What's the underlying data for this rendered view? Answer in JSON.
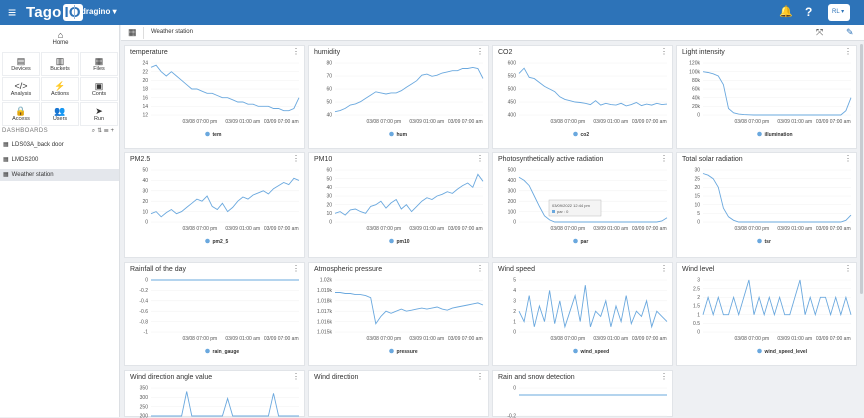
{
  "topbar": {
    "logo_text": "Tago",
    "logo_box": "IO",
    "account": "dragino",
    "avatar_initials": "RL"
  },
  "sidebar": {
    "home": "Home",
    "tiles": [
      {
        "label": "Devices",
        "icon": "devices-icon",
        "glyph": "▤"
      },
      {
        "label": "Buckets",
        "icon": "buckets-icon",
        "glyph": "▥"
      },
      {
        "label": "Files",
        "icon": "files-icon",
        "glyph": "▦"
      },
      {
        "label": "Analysis",
        "icon": "analysis-icon",
        "glyph": "</>"
      },
      {
        "label": "Actions",
        "icon": "actions-icon",
        "glyph": "⚡"
      },
      {
        "label": "Conts",
        "icon": "conts-icon",
        "glyph": "▣"
      },
      {
        "label": "Access",
        "icon": "access-icon",
        "glyph": "🔒"
      },
      {
        "label": "Users",
        "icon": "users-icon",
        "glyph": "👥"
      },
      {
        "label": "Run",
        "icon": "run-icon",
        "glyph": "➤"
      }
    ],
    "dashboards_header": "DASHBOARDS",
    "dashboards": [
      "LDS03A_back door",
      "LMDS200",
      "Weather station"
    ]
  },
  "subbar": {
    "title": "Weather station"
  },
  "colors": {
    "line": "#6aa8de",
    "topbar": "#2d73b8"
  },
  "widgets": [
    {
      "title": "temperature",
      "legend": "tem",
      "y_ticks": [
        "24",
        "22",
        "20",
        "18",
        "16",
        "14",
        "12"
      ],
      "x_ticks": [
        "03/08 07:00 pm",
        "03/09 01:00 am",
        "03/09 07:00 am"
      ],
      "ylim": [
        12,
        24
      ],
      "values": [
        23,
        23.5,
        22,
        21,
        22,
        21,
        20,
        19,
        18,
        18,
        17.5,
        17,
        17,
        16.5,
        16,
        16,
        15.5,
        15,
        15,
        14.5,
        14.5,
        14,
        14,
        14,
        13.5,
        13.5,
        13,
        13,
        13.5,
        16
      ]
    },
    {
      "title": "humidity",
      "legend": "hum",
      "y_ticks": [
        "80",
        "70",
        "60",
        "50",
        "40"
      ],
      "x_ticks": [
        "03/08 07:00 pm",
        "03/09 01:00 am",
        "03/09 07:00 am"
      ],
      "ylim": [
        35,
        82
      ],
      "values": [
        38,
        39,
        41,
        44,
        45,
        47,
        50,
        53,
        56,
        55,
        54,
        55,
        55,
        57,
        60,
        63,
        66,
        71,
        72,
        70,
        71,
        73,
        74,
        75,
        75,
        77,
        77,
        78,
        77,
        68
      ]
    },
    {
      "title": "CO2",
      "legend": "co2",
      "y_ticks": [
        "600",
        "550",
        "500",
        "450",
        "400"
      ],
      "x_ticks": [
        "03/08 07:00 pm",
        "03/09 01:00 am",
        "03/09 07:00 am"
      ],
      "ylim": [
        400,
        600
      ],
      "values": [
        560,
        580,
        545,
        540,
        525,
        510,
        500,
        490,
        470,
        460,
        455,
        450,
        448,
        445,
        440,
        455,
        438,
        445,
        440,
        438,
        445,
        435,
        440,
        448,
        436,
        442,
        438,
        445,
        440,
        442
      ]
    },
    {
      "title": "Light intensity",
      "legend": "illumination",
      "y_ticks": [
        "120k",
        "100k",
        "80k",
        "60k",
        "40k",
        "20k",
        "0"
      ],
      "x_ticks": [
        "03/08 07:00 pm",
        "03/09 01:00 am",
        "03/09 07:00 am"
      ],
      "ylim": [
        0,
        120000
      ],
      "values": [
        100000,
        98000,
        95000,
        90000,
        70000,
        15000,
        5000,
        2000,
        1000,
        500,
        0,
        0,
        0,
        0,
        0,
        0,
        0,
        0,
        0,
        0,
        0,
        0,
        0,
        0,
        0,
        0,
        0,
        0,
        10000,
        40000
      ]
    },
    {
      "title": "PM2.5",
      "legend": "pm2_5",
      "y_ticks": [
        "50",
        "40",
        "30",
        "20",
        "10",
        "0"
      ],
      "x_ticks": [
        "03/08 07:00 pm",
        "03/09 01:00 am",
        "03/09 07:00 am"
      ],
      "ylim": [
        0,
        50
      ],
      "values": [
        8,
        10,
        5,
        9,
        12,
        8,
        10,
        14,
        18,
        22,
        20,
        25,
        15,
        12,
        18,
        10,
        14,
        20,
        24,
        22,
        26,
        28,
        30,
        27,
        32,
        35,
        38,
        36,
        42,
        40
      ]
    },
    {
      "title": "PM10",
      "legend": "pm10",
      "y_ticks": [
        "60",
        "50",
        "40",
        "30",
        "20",
        "10",
        "0"
      ],
      "x_ticks": [
        "03/08 07:00 pm",
        "03/09 01:00 am",
        "03/09 07:00 am"
      ],
      "ylim": [
        0,
        60
      ],
      "values": [
        10,
        12,
        8,
        14,
        15,
        12,
        10,
        18,
        20,
        24,
        16,
        22,
        26,
        15,
        20,
        12,
        18,
        24,
        28,
        26,
        30,
        32,
        35,
        33,
        38,
        42,
        45,
        40,
        55,
        47
      ]
    },
    {
      "title": "Photosynthetically active radiation",
      "legend": "par",
      "y_ticks": [
        "500",
        "400",
        "300",
        "200",
        "100",
        "0"
      ],
      "x_ticks": [
        "03/08 07:00 pm",
        "03/09 01:00 am",
        "03/09 07:00 am"
      ],
      "ylim": [
        0,
        500
      ],
      "values": [
        430,
        400,
        350,
        250,
        150,
        60,
        20,
        0,
        0,
        0,
        0,
        0,
        0,
        0,
        0,
        0,
        0,
        0,
        0,
        0,
        0,
        0,
        0,
        0,
        0,
        0,
        0,
        0,
        10,
        40
      ],
      "tooltip": {
        "date": "03/09/2022 12:44 pm",
        "label": "par : 0"
      }
    },
    {
      "title": "Total solar radiation",
      "legend": "tsr",
      "y_ticks": [
        "30",
        "25",
        "20",
        "15",
        "10",
        "5",
        "0"
      ],
      "x_ticks": [
        "03/08 07:00 pm",
        "03/09 01:00 am",
        "03/09 07:00 am"
      ],
      "ylim": [
        0,
        30
      ],
      "values": [
        28,
        27,
        25,
        20,
        8,
        3,
        1,
        0,
        0,
        0,
        0,
        0,
        0,
        0,
        0,
        0,
        0,
        0,
        0,
        0,
        0,
        0,
        0,
        0,
        0,
        0,
        0,
        0,
        1,
        4
      ]
    },
    {
      "title": "Rainfall of the day",
      "legend": "rain_gauge",
      "y_ticks": [
        "0",
        "-0.2",
        "-0.4",
        "-0.6",
        "-0.8",
        "-1"
      ],
      "x_ticks": [
        "03/08 07:00 pm",
        "03/09 01:00 am",
        "03/09 07:00 am"
      ],
      "ylim": [
        -1,
        0
      ],
      "values": [
        0,
        0,
        0,
        0,
        0,
        0,
        0,
        0,
        0,
        0,
        0,
        0,
        0,
        0,
        0,
        0,
        0,
        0,
        0,
        0,
        0,
        0,
        0,
        0,
        0,
        0,
        0,
        0,
        0,
        0
      ]
    },
    {
      "title": "Atmospheric pressure",
      "legend": "pressure",
      "y_ticks": [
        "1.02k",
        "1.019k",
        "1.018k",
        "1.017k",
        "1.016k",
        "1.015k"
      ],
      "x_ticks": [
        "03/08 07:00 pm",
        "03/09 01:00 am",
        "03/09 07:00 am"
      ],
      "ylim": [
        1015,
        1020
      ],
      "values": [
        1018.8,
        1018.8,
        1018.7,
        1018.7,
        1018.6,
        1018.6,
        1018.5,
        1018.3,
        1015.8,
        1016.5,
        1017,
        1016.8,
        1017,
        1017.2,
        1017,
        1017.1,
        1017.2,
        1017.3,
        1017.2,
        1017.3,
        1017.4,
        1017.2,
        1017.1,
        1017.3,
        1017.4,
        1017.5,
        1017.6,
        1017.7,
        1017.8,
        1017.6
      ]
    },
    {
      "title": "Wind speed",
      "legend": "wind_speed",
      "y_ticks": [
        "5",
        "4",
        "3",
        "2",
        "1",
        "0"
      ],
      "x_ticks": [
        "03/08 07:00 pm",
        "03/09 01:00 am",
        "03/09 07:00 am"
      ],
      "ylim": [
        0,
        5
      ],
      "values": [
        2,
        1,
        3.5,
        0.5,
        2.5,
        1,
        4,
        0.8,
        3,
        0.5,
        2,
        3.5,
        1,
        4.5,
        0.5,
        2,
        1.5,
        3,
        0.5,
        2.5,
        1,
        3.5,
        0.8,
        2,
        1.5,
        3,
        0.5,
        2,
        1.5,
        1
      ]
    },
    {
      "title": "Wind level",
      "legend": "wind_speed_level",
      "y_ticks": [
        "3",
        "2.5",
        "2",
        "1.5",
        "1",
        "0.5",
        "0"
      ],
      "x_ticks": [
        "03/08 07:00 pm",
        "03/09 01:00 am",
        "03/09 07:00 am"
      ],
      "ylim": [
        0,
        3
      ],
      "values": [
        1,
        2,
        1,
        2,
        1,
        1,
        2,
        1,
        2,
        3,
        1,
        2,
        1,
        2,
        1,
        2,
        1,
        1,
        2,
        3,
        1,
        2,
        1,
        2,
        2,
        1,
        2,
        1,
        2,
        1
      ]
    },
    {
      "title": "Wind direction angle value",
      "legend": "",
      "y_ticks": [
        "350",
        "300",
        "250",
        "200"
      ],
      "x_ticks": [],
      "ylim": [
        200,
        360
      ],
      "values": [
        200,
        200,
        200,
        200,
        200,
        200,
        200,
        340,
        200,
        200,
        200,
        200,
        200,
        200,
        200,
        300,
        200,
        200,
        200,
        200,
        200,
        200,
        200,
        200,
        330,
        200,
        200,
        200,
        200,
        200
      ]
    },
    {
      "title": "Wind direction",
      "legend": "",
      "y_ticks": [],
      "x_ticks": [],
      "values": []
    },
    {
      "title": "Rain and snow detection",
      "legend": "",
      "y_ticks": [
        "0",
        "-0.2"
      ],
      "x_ticks": [],
      "ylim": [
        -0.3,
        0.1
      ],
      "values": [
        0,
        0,
        0,
        0,
        0,
        0,
        0,
        0,
        0,
        0,
        0,
        0,
        0,
        0,
        0,
        0,
        0,
        0,
        0,
        0,
        0,
        0,
        0,
        0,
        0,
        0,
        0,
        0,
        0,
        0
      ]
    }
  ]
}
